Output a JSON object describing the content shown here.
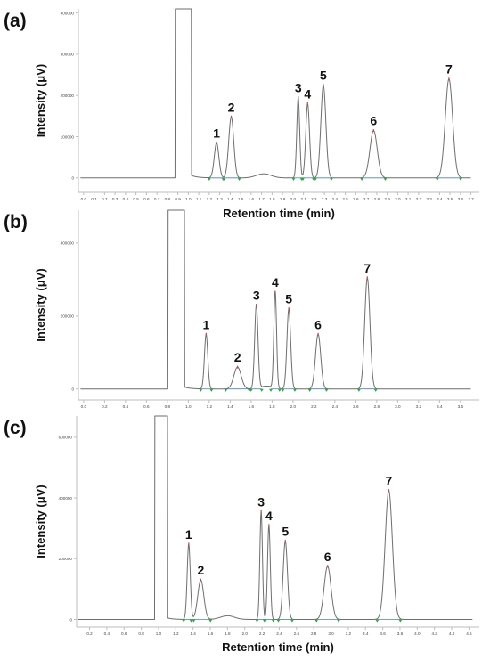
{
  "chart_data": [
    {
      "type": "line",
      "panel_label": "(a)",
      "xlabel": "Retention time (min)",
      "ylabel": "Intensity (μV)",
      "xlim": [
        -0.05,
        3.78
      ],
      "ylim": [
        -35000,
        410000
      ],
      "xticks": [
        0.0,
        0.1,
        0.2,
        0.3,
        0.4,
        0.5,
        0.6,
        0.7,
        0.8,
        0.9,
        1.0,
        1.1,
        1.2,
        1.3,
        1.4,
        1.5,
        1.6,
        1.7,
        1.8,
        1.9,
        2.0,
        2.1,
        2.2,
        2.3,
        2.4,
        2.5,
        2.6,
        2.7,
        2.8,
        2.9,
        3.0,
        3.1,
        3.2,
        3.3,
        3.4,
        3.5,
        3.6,
        3.7
      ],
      "xtick_labels": [
        "0.0",
        "0.1",
        "0.2",
        "0.3",
        "0.4",
        "0.5",
        "0.6",
        "0.7",
        "0.8",
        "0.9",
        "1.0",
        "1.1",
        "1.2",
        "1.3",
        "1.4",
        "1.5",
        "1.6",
        "1.7",
        "1.8",
        "1.9",
        "2.0",
        "2.1",
        "2.2",
        "2.3",
        "2.4",
        "2.5",
        "2.6",
        "2.7",
        "2.8",
        "2.9",
        "3.0",
        "3.1",
        "3.2",
        "3.3",
        "3.4",
        "3.5",
        "3.6",
        "3.7"
      ],
      "yticks": [
        0,
        100000,
        200000,
        300000,
        400000
      ],
      "ytick_labels": [
        "0",
        "100000",
        "200000",
        "300000",
        "400000"
      ],
      "solvent_front": {
        "t": 0.93,
        "start": 0.875,
        "end": 1.03,
        "baseline_after": 6000
      },
      "peaks": [
        {
          "label": "1",
          "t": 1.27,
          "height": 85000,
          "width": 0.022
        },
        {
          "label": "2",
          "t": 1.41,
          "height": 148000,
          "width": 0.024
        },
        {
          "label": "3",
          "t": 2.05,
          "height": 195000,
          "width": 0.014
        },
        {
          "label": "4",
          "t": 2.14,
          "height": 180000,
          "width": 0.018
        },
        {
          "label": "5",
          "t": 2.29,
          "height": 225000,
          "width": 0.024
        },
        {
          "label": "6",
          "t": 2.77,
          "height": 115000,
          "width": 0.035
        },
        {
          "label": "7",
          "t": 3.49,
          "height": 240000,
          "width": 0.035
        }
      ],
      "hump": {
        "t": 1.72,
        "height": 10000,
        "width": 0.07
      }
    },
    {
      "type": "line",
      "panel_label": "(b)",
      "xlabel": "",
      "ylabel": "Intensity (μV)",
      "xlim": [
        -0.05,
        3.78
      ],
      "ylim": [
        -30000,
        490000
      ],
      "xticks": [
        0.0,
        0.2,
        0.4,
        0.6,
        0.8,
        1.0,
        1.2,
        1.4,
        1.6,
        1.8,
        2.0,
        2.2,
        2.4,
        2.6,
        2.8,
        3.0,
        3.2,
        3.4,
        3.6
      ],
      "xtick_labels": [
        "0.0",
        "0.2",
        "0.4",
        "0.6",
        "0.8",
        "1.0",
        "1.2",
        "1.4",
        "1.6",
        "1.8",
        "2.0",
        "2.2",
        "2.4",
        "2.6",
        "2.8",
        "3.0",
        "3.2",
        "3.4",
        "3.6"
      ],
      "yticks": [
        0,
        200000,
        400000
      ],
      "ytick_labels": [
        "0",
        "200000",
        "400000"
      ],
      "solvent_front": {
        "t": 0.87,
        "start": 0.805,
        "end": 0.965,
        "baseline_after": 5000
      },
      "peaks": [
        {
          "label": "1",
          "t": 1.17,
          "height": 150000,
          "width": 0.016
        },
        {
          "label": "2",
          "t": 1.47,
          "height": 60000,
          "width": 0.035
        },
        {
          "label": "3",
          "t": 1.65,
          "height": 230000,
          "width": 0.016
        },
        {
          "label": "4",
          "t": 1.83,
          "height": 265000,
          "width": 0.013
        },
        {
          "label": "5",
          "t": 1.96,
          "height": 220000,
          "width": 0.018
        },
        {
          "label": "6",
          "t": 2.24,
          "height": 150000,
          "width": 0.025
        },
        {
          "label": "7",
          "t": 2.71,
          "height": 305000,
          "width": 0.025
        }
      ],
      "hump": {
        "t": 1.75,
        "height": 8000,
        "width": 0.06
      }
    },
    {
      "type": "line",
      "panel_label": "(c)",
      "xlabel": "Retention time (min)",
      "ylabel": "Intensity (μV)",
      "xlim": [
        0.05,
        4.72
      ],
      "ylim": [
        -25000,
        670000
      ],
      "xticks": [
        0.2,
        0.4,
        0.6,
        0.8,
        1.0,
        1.2,
        1.4,
        1.6,
        1.8,
        2.0,
        2.2,
        2.4,
        2.6,
        2.8,
        3.0,
        3.2,
        3.4,
        3.6,
        3.8,
        4.0,
        4.2,
        4.4,
        4.6
      ],
      "xtick_labels": [
        "0.2",
        "0.4",
        "0.6",
        "0.8",
        "1.0",
        "1.2",
        "1.4",
        "1.6",
        "1.8",
        "2.0",
        "2.2",
        "2.4",
        "2.6",
        "2.8",
        "3.0",
        "3.2",
        "3.4",
        "3.6",
        "3.8",
        "4.0",
        "4.2",
        "4.4",
        "4.6"
      ],
      "yticks": [
        0,
        200000,
        400000,
        600000
      ],
      "ytick_labels": [
        "0",
        "200000",
        "400000",
        "600000"
      ],
      "solvent_front": {
        "t": 1.02,
        "start": 0.955,
        "end": 1.105,
        "baseline_after": 5000
      },
      "peaks": [
        {
          "label": "1",
          "t": 1.35,
          "height": 248000,
          "width": 0.018
        },
        {
          "label": "2",
          "t": 1.49,
          "height": 130000,
          "width": 0.035
        },
        {
          "label": "3",
          "t": 2.19,
          "height": 355000,
          "width": 0.015
        },
        {
          "label": "4",
          "t": 2.28,
          "height": 310000,
          "width": 0.016
        },
        {
          "label": "5",
          "t": 2.47,
          "height": 258000,
          "width": 0.025
        },
        {
          "label": "6",
          "t": 2.96,
          "height": 175000,
          "width": 0.04
        },
        {
          "label": "7",
          "t": 3.67,
          "height": 425000,
          "width": 0.042
        }
      ],
      "hump": {
        "t": 1.8,
        "height": 12000,
        "width": 0.08
      }
    }
  ],
  "colors": {
    "trace": "#6e6e6e",
    "axis": "#bdbdbd",
    "text": "#111111",
    "tick_text": "#444444",
    "baseline_fit": "#4f7fc4",
    "integration_mark": "#2eaa3e",
    "peak_apex": "#d14545"
  }
}
